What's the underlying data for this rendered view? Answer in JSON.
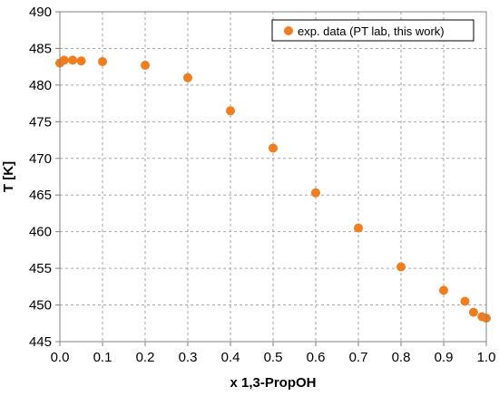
{
  "chart_data": {
    "type": "scatter",
    "title": "",
    "xlabel": "x 1,3-PropOH",
    "ylabel": "T [K]",
    "xlim": [
      0.0,
      1.0
    ],
    "ylim": [
      445,
      490
    ],
    "x_ticks": [
      "0.0",
      "0.1",
      "0.2",
      "0.3",
      "0.4",
      "0.5",
      "0.6",
      "0.7",
      "0.8",
      "0.9",
      "1.0"
    ],
    "y_ticks": [
      "445",
      "450",
      "455",
      "460",
      "465",
      "470",
      "475",
      "480",
      "485",
      "490"
    ],
    "grid": true,
    "legend_position": "top-right",
    "series": [
      {
        "name": "exp. data (PT lab, this work)",
        "color": "#f07d1e",
        "marker": "circle",
        "points": [
          {
            "x": 0.0,
            "y": 483.0
          },
          {
            "x": 0.01,
            "y": 483.4
          },
          {
            "x": 0.03,
            "y": 483.4
          },
          {
            "x": 0.05,
            "y": 483.3
          },
          {
            "x": 0.1,
            "y": 483.2
          },
          {
            "x": 0.2,
            "y": 482.7
          },
          {
            "x": 0.3,
            "y": 481.0
          },
          {
            "x": 0.4,
            "y": 476.5
          },
          {
            "x": 0.5,
            "y": 471.4
          },
          {
            "x": 0.6,
            "y": 465.3
          },
          {
            "x": 0.7,
            "y": 460.5
          },
          {
            "x": 0.8,
            "y": 455.2
          },
          {
            "x": 0.9,
            "y": 452.0
          },
          {
            "x": 0.95,
            "y": 450.5
          },
          {
            "x": 0.97,
            "y": 449.0
          },
          {
            "x": 0.99,
            "y": 448.4
          },
          {
            "x": 1.0,
            "y": 448.2
          }
        ]
      }
    ]
  }
}
